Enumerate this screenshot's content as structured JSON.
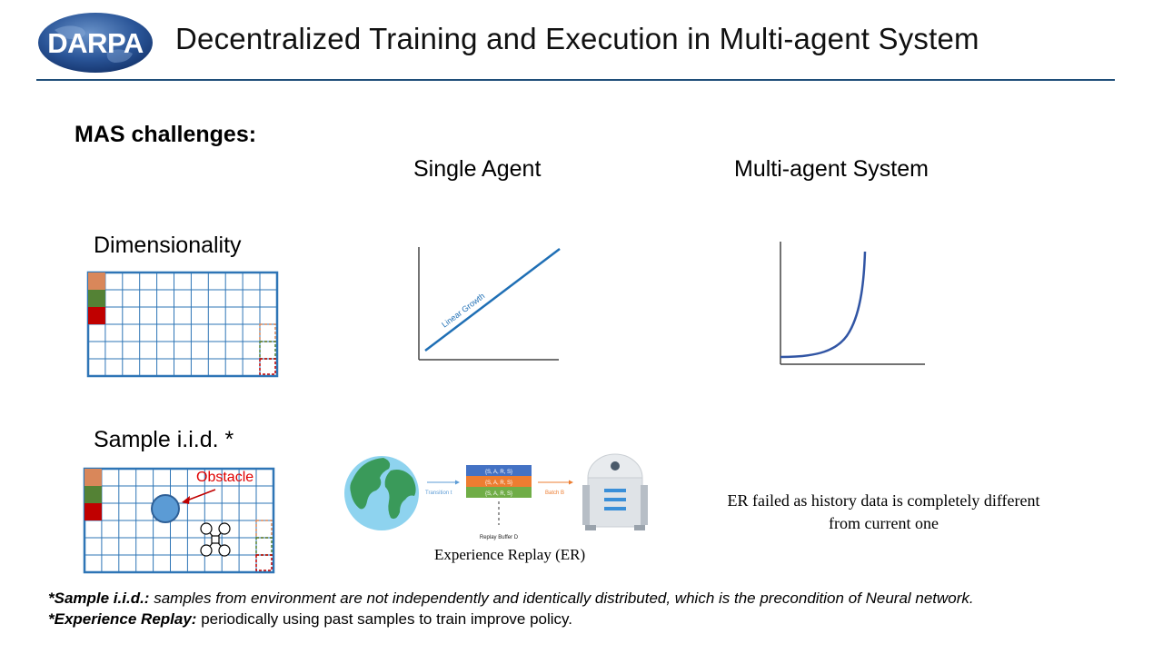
{
  "header": {
    "logo_text": "DARPA",
    "title": "Decentralized Training and Execution in Multi-agent System"
  },
  "section": {
    "heading": "MAS challenges:"
  },
  "columns": {
    "single": "Single Agent",
    "multi": "Multi-agent System"
  },
  "rows": {
    "dimensionality": "Dimensionality",
    "sample_iid": "Sample i.i.d. *"
  },
  "dimensionality": {
    "linear_label": "Linear Growth"
  },
  "sample": {
    "obstacle_label": "Obstacle",
    "er_diagram": {
      "transition_label": "Transition t",
      "buffer_rows": [
        "{S, A, R, S}",
        "{S, A, R, S}",
        "{S, A, R, S}"
      ],
      "batch_label": "Batch B",
      "buffer_label": "Replay Buffer D"
    },
    "er_caption": "Experience Replay (ER)",
    "er_failed": "ER failed as history data is completely different from current one"
  },
  "footnotes": {
    "iid_term": "*Sample i.i.d.:",
    "iid_text": " samples from environment are not independently and identically distributed, which is the precondition of Neural network.",
    "er_term": "*Experience Replay:",
    "er_text": " periodically using past samples to train improve policy."
  },
  "colors": {
    "rule": "#1f4e79",
    "grid": "#2e75b6",
    "orange": "#d9875a",
    "green": "#548235",
    "red": "#c00000",
    "line": "#1f6fb5",
    "curve": "#3155a4"
  }
}
